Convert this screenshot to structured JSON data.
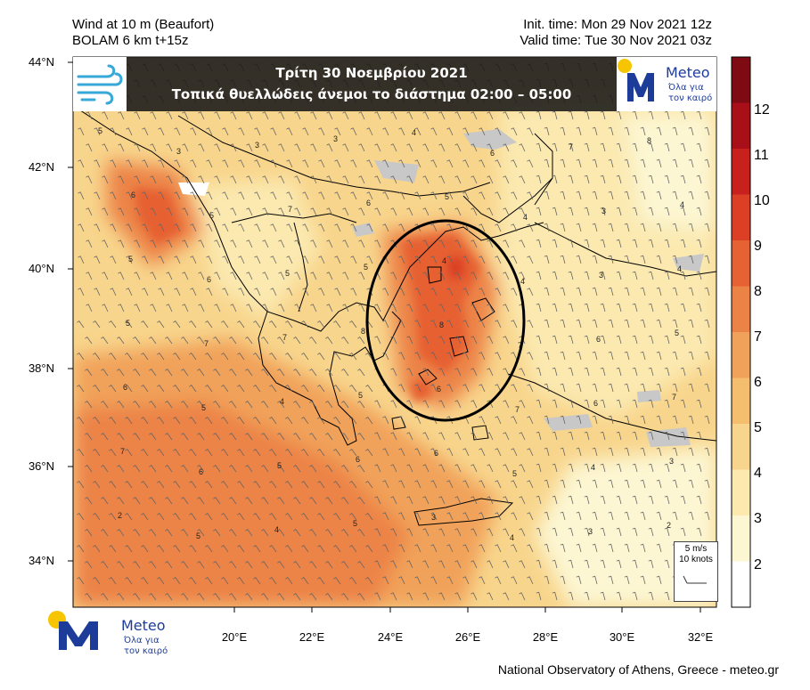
{
  "header": {
    "left_line1": "Wind at 10 m (Beaufort)",
    "left_line2": "BOLAM 6 km t+15z",
    "right_line1": "Init. time: Mon 29 Nov 2021 12z",
    "right_line2": "Valid time: Tue 30 Nov 2021 03z"
  },
  "banner": {
    "line1": "Τρίτη 30 Νοεμβρίου 2021",
    "line2": "Τοπικά θυελλώδεις άνεμοι το διάστημα  02:00 – 05:00"
  },
  "logo": {
    "name": "Meteo",
    "slogan_line1": "Όλα για",
    "slogan_line2": "τον καιρό"
  },
  "axes": {
    "lat_ticks": [
      "44°N",
      "42°N",
      "40°N",
      "38°N",
      "36°N",
      "34°N"
    ],
    "lon_ticks": [
      "20°E",
      "22°E",
      "24°E",
      "26°E",
      "28°E",
      "30°E",
      "32°E"
    ]
  },
  "colorbar": {
    "ticks": [
      "2",
      "3",
      "4",
      "5",
      "6",
      "7",
      "8",
      "9",
      "10",
      "11",
      "12"
    ],
    "colors": [
      "#ffffff",
      "#fcf6d2",
      "#fbe9b0",
      "#f8d58c",
      "#f5be6e",
      "#f1a25a",
      "#ec8346",
      "#e66133",
      "#db3f25",
      "#c8201d",
      "#a80f18",
      "#7e0a13"
    ]
  },
  "contour_labels": [
    "5",
    "3",
    "3",
    "3",
    "4",
    "6",
    "7",
    "8",
    "6",
    "5",
    "7",
    "6",
    "5",
    "4",
    "3",
    "4",
    "5",
    "6",
    "5",
    "5",
    "4",
    "4",
    "3",
    "4",
    "5",
    "7",
    "7",
    "8",
    "8",
    "7",
    "6",
    "5",
    "6",
    "5",
    "4",
    "5",
    "6",
    "7",
    "6",
    "7",
    "7",
    "6",
    "5",
    "6",
    "6",
    "5",
    "4",
    "3",
    "2",
    "5",
    "4",
    "5",
    "3",
    "4",
    "3",
    "2"
  ],
  "reference_vector": {
    "speed_ms": "5 m/s",
    "speed_knots": "10 knots"
  },
  "footer": "National Observatory of Athens, Greece - meteo.gr",
  "colors": {
    "land_outline": "#000000",
    "grey_high": "#c8c8c8",
    "highlight_ellipse": "#000000",
    "banner_bg": "#191919",
    "logo_blue": "#1d3c9a",
    "logo_yellow": "#f6c500",
    "wind_icon": "#38a8d8"
  }
}
